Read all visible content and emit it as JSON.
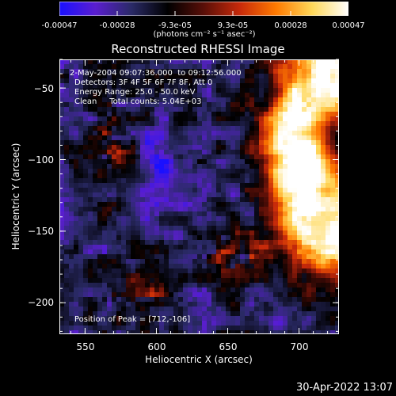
{
  "colorbar": {
    "colors": [
      "#1a10ff",
      "#5a1ed0",
      "#2a2a66",
      "#000000",
      "#5a0f08",
      "#c82a0a",
      "#ff7a00",
      "#ffd85a",
      "#ffffff"
    ],
    "tick_labels": [
      "-0.00047",
      "-0.00028",
      "-9.3e-05",
      "9.3e-05",
      "0.00028",
      "0.00047"
    ],
    "units_label": "(photons cm⁻² s⁻¹ asec⁻²)"
  },
  "chart_data": {
    "type": "heatmap",
    "title": "Reconstructed RHESSI Image",
    "xlabel": "Heliocentric X (arcsec)",
    "ylabel": "Heliocentric Y (arcsec)",
    "xlim": [
      532,
      728
    ],
    "ylim": [
      -222,
      -30
    ],
    "x_ticks": [
      550,
      600,
      650,
      700
    ],
    "y_ticks": [
      -50,
      -100,
      -150,
      -200
    ],
    "x_tick_labels": [
      "550",
      "600",
      "650",
      "700"
    ],
    "y_tick_labels": [
      "−50",
      "−100",
      "−150",
      "−200"
    ],
    "value_range": [
      -0.00047,
      0.00047
    ],
    "peak_position": [
      712,
      -106
    ],
    "annotations": [
      "2-May-2004 09:07:36.000  to 09:12:56.000",
      "Detectors: 3F 4F 5F 6F 7F 8F, Att 0",
      "Energy Range: 25.0 - 50.0 keV",
      "Clean     Total counts: 5.04E+03"
    ],
    "peak_text": "Position of Peak = [712,-106]"
  },
  "footer": {
    "timestamp": "30-Apr-2022 13:07"
  }
}
